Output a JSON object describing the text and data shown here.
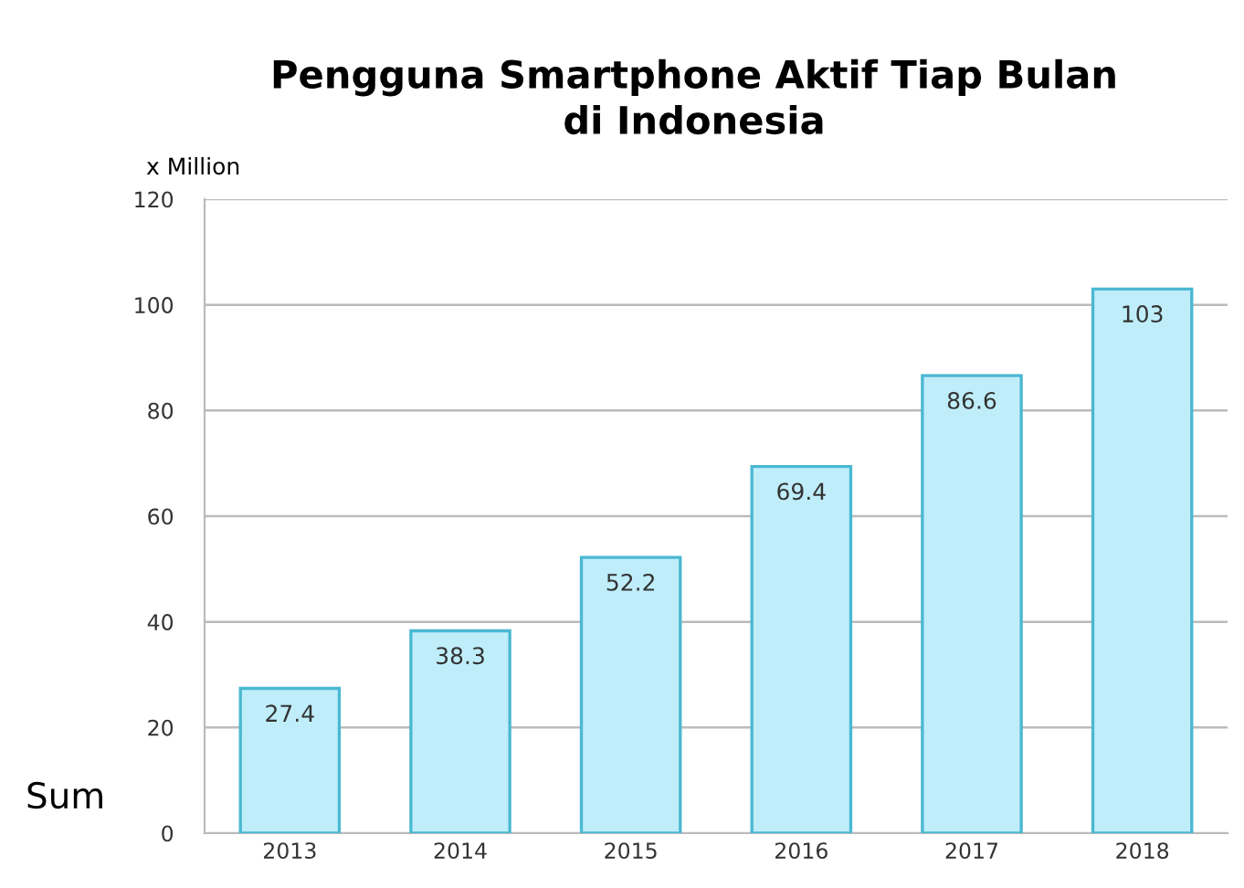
{
  "chart_data": {
    "type": "bar",
    "title": "Pengguna Smartphone Aktif Tiap Bulan\ndi Indonesia",
    "ylabel": "x Million",
    "categories": [
      "2013",
      "2014",
      "2015",
      "2016",
      "2017",
      "2018"
    ],
    "values": [
      27.4,
      38.3,
      52.2,
      69.4,
      86.6,
      103
    ],
    "color": "#bfeefa",
    "ylim": [
      0,
      120
    ],
    "yticks": [
      0,
      20,
      40,
      60,
      80,
      100,
      120
    ],
    "grid": "y",
    "data_labels": true,
    "annotations": [
      "Sum"
    ]
  }
}
